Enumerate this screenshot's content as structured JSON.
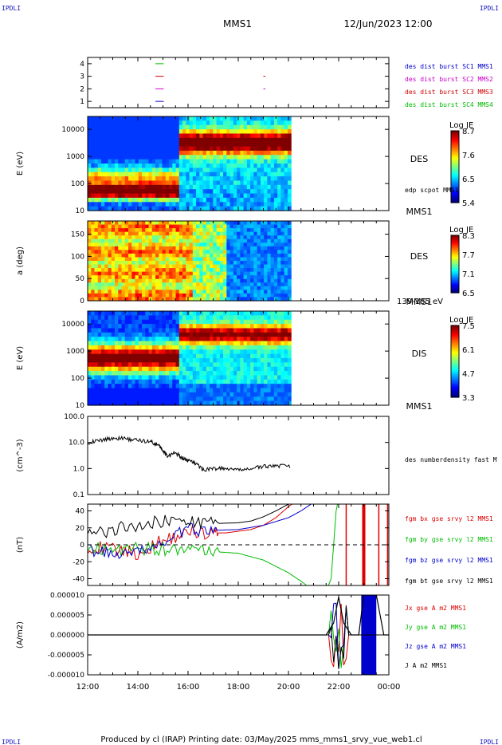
{
  "corner_logo": "IPDLI",
  "header": {
    "spacecraft": "MMS1",
    "date_time": "12/Jun/2023 12:00"
  },
  "footer": "Produced by cl (IRAP)   Printing date: 03/May/2025   mms_mms1_srvy_vue_web1.cl",
  "time_axis": {
    "ticks": [
      "12:00",
      "14:00",
      "16:00",
      "18:00",
      "20:00",
      "22:00",
      "00:00"
    ]
  },
  "chart_data": [
    {
      "type": "scatter",
      "panel": "data availability",
      "ylim": [
        0.5,
        4.5
      ],
      "yticks": [
        "1",
        "2",
        "3",
        "4"
      ],
      "series": [
        {
          "name": "des dist burst SC1 MMS1",
          "color": "#0000cc",
          "y": 1,
          "segments": [
            [
              14.7,
              15.0
            ]
          ]
        },
        {
          "name": "des dist burst SC2 MMS2",
          "color": "#cc00cc",
          "y": 2,
          "segments": [
            [
              14.7,
              15.0
            ],
            [
              19.0,
              19.05
            ]
          ]
        },
        {
          "name": "des dist burst SC3 MMS3",
          "color": "#cc0000",
          "y": 3,
          "segments": [
            [
              14.7,
              15.0
            ],
            [
              19.0,
              19.05
            ]
          ]
        },
        {
          "name": "des dist burst SC4 MMS4",
          "color": "#00bb00",
          "y": 4,
          "segments": [
            [
              14.7,
              15.0
            ]
          ]
        }
      ]
    },
    {
      "type": "heatmap",
      "panel": "DES energy spectrogram",
      "ylabel": "E (eV)",
      "yscale": "log",
      "ylim": [
        10,
        30000
      ],
      "yticks": [
        "10",
        "100",
        "1000",
        "10000"
      ],
      "instrument_label": "DES",
      "sc_label": "MMS1",
      "overlay_label": "edp scpot MMS1",
      "colorbar": {
        "label": "Log JE",
        "ticks": [
          "8.7",
          "7.6",
          "6.5",
          "5.4"
        ],
        "range": [
          5.4,
          8.7
        ]
      },
      "data_end_hour": 20.1
    },
    {
      "type": "heatmap",
      "panel": "DES pitch angle",
      "ylabel": "a (deg)",
      "ylim": [
        0,
        180
      ],
      "yticks": [
        "0",
        "50",
        "100",
        "150"
      ],
      "instrument_label": "DES",
      "sc_label": "MMS1",
      "energy_label": "139-185 eV",
      "colorbar": {
        "label": "Log JE",
        "ticks": [
          "8.3",
          "7.7",
          "7.1",
          "6.5"
        ],
        "range": [
          6.5,
          8.3
        ]
      },
      "data_end_hour": 20.1
    },
    {
      "type": "heatmap",
      "panel": "DIS energy spectrogram",
      "ylabel": "E (eV)",
      "yscale": "log",
      "ylim": [
        10,
        30000
      ],
      "yticks": [
        "10",
        "100",
        "1000",
        "10000"
      ],
      "instrument_label": "DIS",
      "sc_label": "MMS1",
      "colorbar": {
        "label": "Log JE",
        "ticks": [
          "7.5",
          "6.1",
          "4.7",
          "3.3"
        ],
        "range": [
          3.3,
          7.5
        ]
      },
      "data_end_hour": 20.1
    },
    {
      "type": "line",
      "panel": "density",
      "ylabel": "(cm^-3)",
      "yscale": "log",
      "ylim": [
        0.1,
        100
      ],
      "yticks": [
        "0.1",
        "1.0",
        "10.0",
        "100.0"
      ],
      "series": [
        {
          "name": "des numberdensity fast M",
          "color": "#000000",
          "x": [
            12.0,
            12.5,
            13.0,
            13.5,
            14.0,
            14.5,
            14.8,
            15.0,
            15.2,
            15.5,
            15.8,
            16.0,
            16.3,
            16.6,
            17.0,
            17.5,
            18.0,
            18.5,
            19.0,
            19.5,
            20.1
          ],
          "y": [
            10,
            12,
            15,
            14,
            12,
            11,
            8,
            5,
            3,
            4,
            2.5,
            2.0,
            1.6,
            0.9,
            1.0,
            1.0,
            0.85,
            1.0,
            1.2,
            1.3,
            1.2
          ]
        }
      ]
    },
    {
      "type": "line",
      "panel": "magnetic field",
      "ylabel": "(nT)",
      "ylim": [
        -48,
        48
      ],
      "yticks": [
        "-40",
        "-20",
        "0",
        "20",
        "40"
      ],
      "series": [
        {
          "name": "fgm bx gse srvy l2 MMS1",
          "color": "#dd0000",
          "x": [
            12.0,
            13.0,
            14.0,
            15.0,
            16.0,
            17.0,
            17.5,
            18.0,
            18.5,
            19.0,
            19.5,
            20.0,
            20.5
          ],
          "y": [
            -2,
            -5,
            -10,
            5,
            15,
            14,
            14,
            16,
            18,
            23,
            32,
            45,
            55
          ]
        },
        {
          "name": "fgm by gse srvy l2 MMS1",
          "color": "#00bb00",
          "x": [
            12.0,
            13.0,
            14.0,
            15.0,
            16.0,
            17.0,
            18.0,
            19.0,
            20.0,
            20.6,
            21.0,
            21.5,
            21.7,
            21.8,
            21.9,
            22.0
          ],
          "y": [
            -3,
            -6,
            -5,
            -5,
            -7,
            -8,
            -10,
            -18,
            -33,
            -45,
            -55,
            -55,
            -40,
            0,
            40,
            55
          ]
        },
        {
          "name": "fgm bz gse srvy l2 MMS1",
          "color": "#0000cc",
          "x": [
            12.0,
            13.0,
            14.0,
            15.0,
            16.0,
            17.0,
            18.0,
            19.0,
            20.0,
            20.5,
            21.0
          ],
          "y": [
            -5,
            -12,
            -10,
            2,
            18,
            17,
            18,
            23,
            32,
            40,
            50
          ]
        },
        {
          "name": "fgm bt gse srvy l2 MMS1",
          "color": "#000000",
          "x": [
            12.0,
            13.0,
            14.0,
            15.0,
            16.0,
            17.0,
            18.0,
            18.5,
            19.0,
            19.5,
            20.0,
            20.3
          ],
          "y": [
            12,
            18,
            24,
            28,
            28,
            25,
            26,
            28,
            33,
            40,
            48,
            55
          ]
        }
      ]
    },
    {
      "type": "line",
      "panel": "current density",
      "ylabel": "(A/m2)",
      "ylim": [
        -1e-05,
        1e-05
      ],
      "yticks": [
        "-0.000010",
        "-0.000005",
        "0.000000",
        "0.000005",
        "0.000010"
      ],
      "series": [
        {
          "name": "Jx gse A m2 MMS1",
          "color": "#dd0000"
        },
        {
          "name": "Jy gse A m2 MMS1",
          "color": "#00bb00"
        },
        {
          "name": "Jz gse A m2 MMS1",
          "color": "#0000cc"
        },
        {
          "name": "J A m2 MMS1",
          "color": "#000000"
        }
      ],
      "x": [
        12.0,
        21.5,
        21.8,
        22.0,
        22.2,
        22.5,
        22.8,
        23.0,
        23.2,
        23.5,
        23.8,
        24.0
      ],
      "y_total": [
        0,
        0,
        3e-06,
        9.5e-06,
        3e-06,
        0,
        0,
        1e-05,
        1e-05,
        1e-05,
        0,
        0
      ]
    }
  ]
}
